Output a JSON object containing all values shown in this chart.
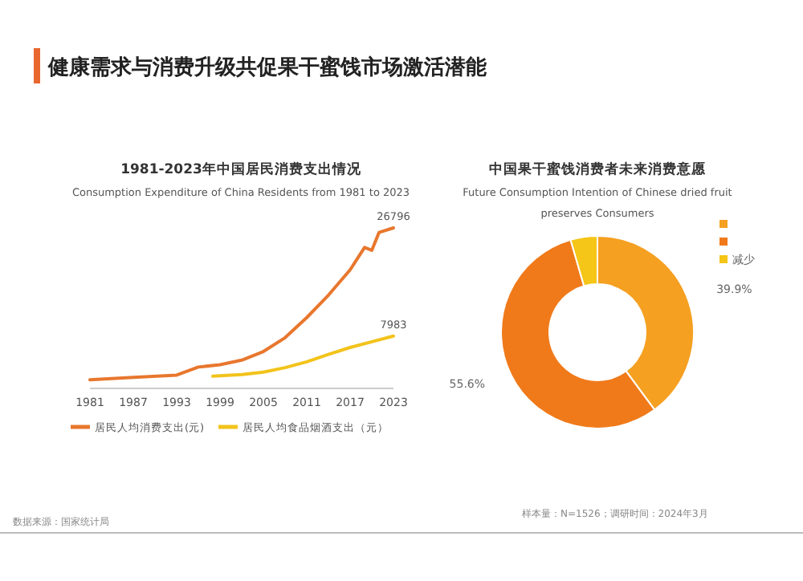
{
  "chart_data": [
    {
      "type": "line",
      "title": "1981-2023年中国居民消费支出情况",
      "subtitle": "Consumption Expenditure of China Residents from 1981 to 2023",
      "annotations": [
        "健康需求与消费升级共促果干蜜饯市场激活潜能",
        "数据来源：国家统计局"
      ],
      "xlim": [
        1981,
        2023
      ],
      "xticks": [
        1981,
        1987,
        1993,
        1999,
        2005,
        2011,
        2017,
        2023
      ],
      "legend": "bottom",
      "grid": false,
      "marker": "none",
      "series": [
        {
          "name": "居民人均消费支出(元)",
          "color": "#e8772e",
          "x": [
            1981,
            1987,
            1993,
            1996,
            1999,
            2002,
            2005,
            2008,
            2011,
            2014,
            2017,
            2019,
            2020,
            2021,
            2023
          ],
          "values": [
            400,
            800,
            1200,
            2600,
            3000,
            3800,
            5300,
            7700,
            11200,
            15100,
            19500,
            23400,
            22900,
            26000,
            26796
          ],
          "value_labels": [
            null,
            null,
            null,
            null,
            null,
            null,
            null,
            null,
            null,
            null,
            null,
            null,
            null,
            null,
            "26796"
          ]
        },
        {
          "name": "居民人均食品烟酒支出（元）",
          "color": "#f2c31b",
          "x": [
            1998,
            2002,
            2005,
            2008,
            2011,
            2014,
            2017,
            2020,
            2023
          ],
          "values": [
            1000,
            1300,
            1700,
            2500,
            3500,
            4800,
            6000,
            7000,
            7983
          ],
          "value_labels": [
            null,
            null,
            null,
            null,
            null,
            null,
            null,
            null,
            "7983"
          ]
        }
      ]
    },
    {
      "type": "donut",
      "title": "中国果干蜜饯消费者未来消费意愿",
      "subtitle": "Future Consumption Intention of Chinese dried fruit preserves Consumers",
      "annotations": [
        "样本量：N=1526；调研时间：2024年3月"
      ],
      "categories": [
        null,
        null,
        "减少"
      ],
      "values": [
        39.9,
        55.6,
        4.5
      ],
      "colors": [
        "#f5a021",
        "#f07a1a",
        "#f5c518"
      ],
      "value_labels": [
        "39.9%",
        "55.6%",
        null
      ],
      "legend": "right"
    }
  ]
}
